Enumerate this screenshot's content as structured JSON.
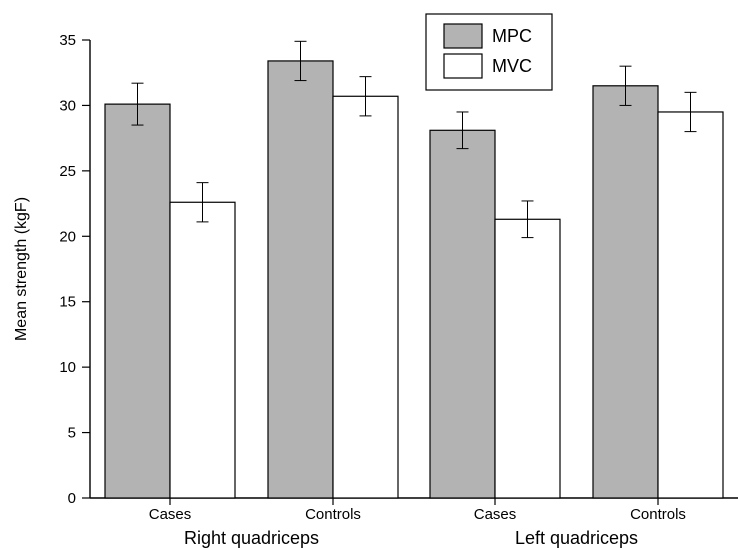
{
  "chart_data": {
    "type": "bar",
    "ylabel": "Mean strength (kgF)",
    "xlabel": "",
    "ylim": [
      0,
      35
    ],
    "yticks": [
      0,
      5,
      10,
      15,
      20,
      25,
      30,
      35
    ],
    "categories": [
      "Cases",
      "Controls",
      "Cases",
      "Controls"
    ],
    "groups": [
      {
        "label": "Right quadriceps",
        "categories": [
          0,
          1
        ]
      },
      {
        "label": "Left quadriceps",
        "categories": [
          2,
          3
        ]
      }
    ],
    "series": [
      {
        "name": "MPC",
        "color": "#b3b3b3",
        "values": [
          30.1,
          33.4,
          28.1,
          31.5
        ],
        "errors": [
          1.6,
          1.5,
          1.4,
          1.5
        ]
      },
      {
        "name": "MVC",
        "color": "#ffffff",
        "values": [
          22.6,
          30.7,
          21.3,
          29.5
        ],
        "errors": [
          1.5,
          1.5,
          1.4,
          1.5
        ]
      }
    ],
    "legend_position": "top-right",
    "grid": false
  }
}
